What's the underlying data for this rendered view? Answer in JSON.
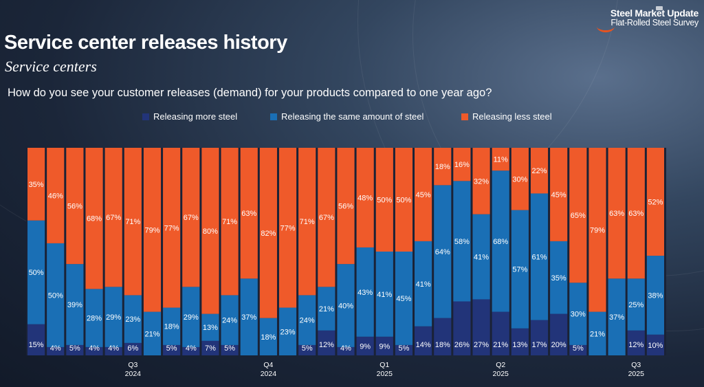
{
  "brand": {
    "name": "Steel Market Update",
    "tagline": "Flat-Rolled Steel Survey"
  },
  "title": "Service center releases history",
  "subtitle": "Service centers",
  "question": "How do you see your customer releases (demand) for your products compared to one year ago?",
  "colors": {
    "more": "#223479",
    "same": "#1a6fb5",
    "less": "#ef5a2a"
  },
  "chart_data": {
    "type": "bar",
    "stacked": true,
    "percent": true,
    "ylim": [
      0,
      100
    ],
    "legend_position": "top",
    "series": [
      {
        "name": "Releasing more steel",
        "values": [
          15,
          4,
          5,
          4,
          4,
          6,
          0,
          5,
          4,
          7,
          5,
          0,
          0,
          0,
          5,
          12,
          4,
          9,
          9,
          5,
          14,
          18,
          26,
          27,
          21,
          13,
          17,
          20,
          5,
          0,
          0,
          12,
          10
        ]
      },
      {
        "name": "Releasing the same amount of steel",
        "values": [
          50,
          50,
          39,
          28,
          29,
          23,
          21,
          18,
          29,
          13,
          24,
          37,
          18,
          23,
          24,
          21,
          40,
          43,
          41,
          45,
          41,
          64,
          58,
          41,
          68,
          57,
          61,
          35,
          30,
          21,
          37,
          25,
          38
        ]
      },
      {
        "name": "Releasing less steel",
        "values": [
          35,
          46,
          56,
          68,
          67,
          71,
          79,
          77,
          67,
          80,
          71,
          63,
          82,
          77,
          71,
          67,
          56,
          48,
          50,
          50,
          45,
          18,
          16,
          32,
          11,
          30,
          22,
          45,
          65,
          79,
          63,
          63,
          52
        ]
      }
    ],
    "quarter_labels": [
      {
        "bar": 5,
        "quarter": "Q3",
        "year": "2024"
      },
      {
        "bar": 12,
        "quarter": "Q4",
        "year": "2024"
      },
      {
        "bar": 18,
        "quarter": "Q1",
        "year": "2025"
      },
      {
        "bar": 24,
        "quarter": "Q2",
        "year": "2025"
      },
      {
        "bar": 31,
        "quarter": "Q3",
        "year": "2025"
      }
    ]
  }
}
